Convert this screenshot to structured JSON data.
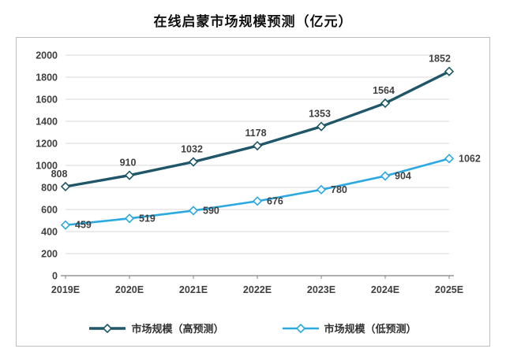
{
  "title": "在线启蒙市场规模预测（亿元）",
  "chart_data": {
    "type": "line",
    "title": "在线启蒙市场规模预测（亿元）",
    "categories": [
      "2019E",
      "2020E",
      "2021E",
      "2022E",
      "2023E",
      "2024E",
      "2025E"
    ],
    "series": [
      {
        "name": "市场规模（高预测）",
        "values": [
          808,
          910,
          1032,
          1178,
          1353,
          1564,
          1852
        ],
        "color": "#1F5668",
        "line_width": 3.4
      },
      {
        "name": "市场规模（低预测）",
        "values": [
          459,
          519,
          590,
          676,
          780,
          904,
          1062
        ],
        "color": "#2BA9E0",
        "line_width": 2.6
      }
    ],
    "xlabel": "",
    "ylabel": "",
    "ylim": [
      0,
      2000
    ],
    "ytick_step": 200,
    "grid": true,
    "legend_position": "bottom",
    "marker": "diamond",
    "colors": {
      "gridline": "#d9d9d9",
      "axis": "#808080",
      "tick_label": "#3f3f3f",
      "data_label": "#404040"
    }
  }
}
